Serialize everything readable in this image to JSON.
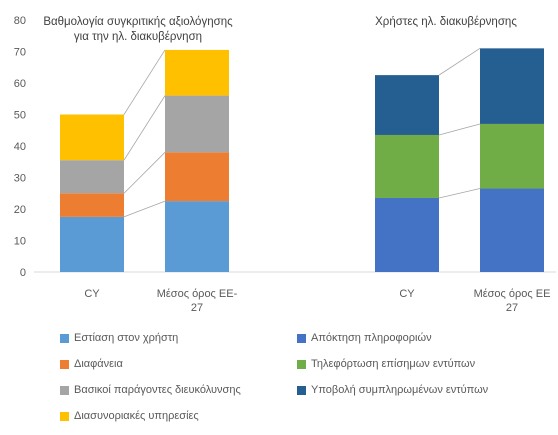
{
  "chart_data": [
    {
      "type": "bar",
      "stacked": true,
      "title": "Βαθμολογία συγκριτικής αξιολόγησης για την ηλ. διακυβέρνηση",
      "title_lines": [
        "Βαθμολογία συγκριτικής αξιολόγησης",
        "για την ηλ. διακυβέρνηση"
      ],
      "categories": [
        "CY",
        "Μέσος όρος ΕΕ-27"
      ],
      "category_lines": [
        [
          "CY"
        ],
        [
          "Μέσος όρος ΕΕ-",
          "27"
        ]
      ],
      "series": [
        {
          "name": "Εστίαση στον χρήστη",
          "values": [
            17.5,
            22.5
          ],
          "color": "#5B9BD5"
        },
        {
          "name": "Διαφάνεια",
          "values": [
            7.5,
            15.5
          ],
          "color": "#ED7D31"
        },
        {
          "name": "Βασικοί παράγοντες διευκόλυνσης",
          "values": [
            10.5,
            18.0
          ],
          "color": "#A5A5A5"
        },
        {
          "name": "Διασυνοριακές υπηρεσίες",
          "values": [
            14.5,
            14.5
          ],
          "color": "#FFC000"
        }
      ]
    },
    {
      "type": "bar",
      "stacked": true,
      "title": "Χρήστες ηλ. διακυβέρνησης",
      "title_lines": [
        "Χρήστες ηλ. διακυβέρνησης"
      ],
      "categories": [
        "CY",
        "Μέσος όρος ΕΕ 27"
      ],
      "category_lines": [
        [
          "CY"
        ],
        [
          "Μέσος όρος ΕΕ",
          "27"
        ]
      ],
      "series": [
        {
          "name": "Απόκτηση πληροφοριών",
          "values": [
            23.5,
            26.5
          ],
          "color": "#4472C4"
        },
        {
          "name": "Τηλεφόρτωση επίσημων εντύπων",
          "values": [
            20.0,
            20.5
          ],
          "color": "#70AD47"
        },
        {
          "name": "Υποβολή συμπληρωμένων εντύπων",
          "values": [
            19.0,
            24.0
          ],
          "color": "#255E91"
        }
      ]
    }
  ],
  "y_axis": {
    "min": 0,
    "max": 80,
    "ticks": [
      "0",
      "10",
      "20",
      "30",
      "40",
      "50",
      "60",
      "70",
      "80"
    ]
  },
  "gridlines": false,
  "legend_position": "bottom",
  "legend": {
    "left": [
      "Εστίαση στον χρήστη",
      "Διαφάνεια",
      "Βασικοί παράγοντες διευκόλυνσης",
      "Διασυνοριακές υπηρεσίες"
    ],
    "right": [
      "Απόκτηση πληροφοριών",
      "Τηλεφόρτωση επίσημων εντύπων",
      "Υποβολή συμπληρωμένων εντύπων"
    ]
  }
}
